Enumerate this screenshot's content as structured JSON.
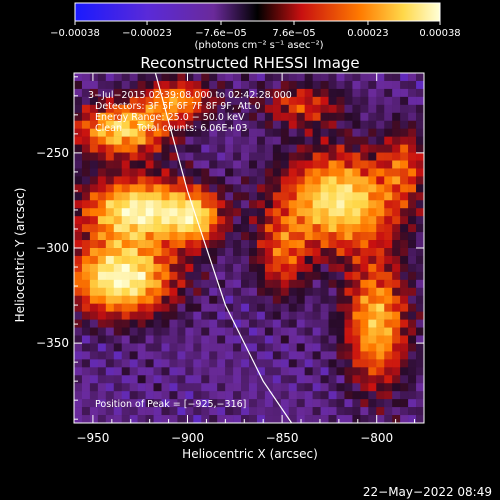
{
  "chart_data": {
    "type": "heatmap",
    "title": "Reconstructed RHESSI Image",
    "xlabel": "Heliocentric X (arcsec)",
    "ylabel": "Heliocentric Y (arcsec)",
    "xlim": [
      -960,
      -775
    ],
    "ylim": [
      -392,
      -208
    ],
    "x_ticks": [
      -950,
      -900,
      -850,
      -800
    ],
    "x_tick_labels": [
      "−950",
      "−900",
      "−850",
      "−800"
    ],
    "y_ticks": [
      -250,
      -300,
      -350
    ],
    "y_tick_labels": [
      "−250",
      "−300",
      "−350"
    ],
    "colorbar": {
      "range": [
        -0.00038,
        0.00038
      ],
      "ticks": [
        -0.00038,
        -0.00023,
        -7.6e-05,
        7.6e-05,
        0.00023,
        0.00038
      ],
      "tick_labels": [
        "−0.00038",
        "−0.00023",
        "−7.6e−05",
        "7.6e−05",
        "0.00023",
        "0.00038"
      ],
      "unit_label": "(photons cm⁻² s⁻¹ asec⁻²)"
    },
    "annotations": [
      "3−Jul−2015 02:39:08.000 to 02:42:28.000",
      "Detectors: 3F 5F 6F 7F 8F 9F, Att 0",
      "Energy Range: 25.0 − 50.0 keV",
      "Clean     Total counts: 6.06E+03"
    ],
    "peak_label": "Position of Peak = [−925,−316]",
    "peak_position": [
      -925,
      -316
    ],
    "limb_curve": [
      [
        -917,
        -208
      ],
      [
        -900,
        -270
      ],
      [
        -880,
        -330
      ],
      [
        -860,
        -370
      ],
      [
        -845,
        -392
      ]
    ],
    "blobs": [
      {
        "x": -935,
        "y": -238,
        "sx": 18,
        "sy": 10,
        "amp": 0.82
      },
      {
        "x": -925,
        "y": -280,
        "sx": 22,
        "sy": 12,
        "amp": 0.95
      },
      {
        "x": -935,
        "y": -316,
        "sx": 20,
        "sy": 14,
        "amp": 1.0
      },
      {
        "x": -905,
        "y": -222,
        "sx": 14,
        "sy": 8,
        "amp": 0.6
      },
      {
        "x": -895,
        "y": -285,
        "sx": 10,
        "sy": 10,
        "amp": 0.55
      },
      {
        "x": -820,
        "y": -275,
        "sx": 22,
        "sy": 18,
        "amp": 0.9
      },
      {
        "x": -800,
        "y": -340,
        "sx": 12,
        "sy": 24,
        "amp": 0.75
      },
      {
        "x": -840,
        "y": -225,
        "sx": 16,
        "sy": 8,
        "amp": 0.45
      },
      {
        "x": -785,
        "y": -255,
        "sx": 8,
        "sy": 14,
        "amp": 0.4
      },
      {
        "x": -850,
        "y": -305,
        "sx": 10,
        "sy": 16,
        "amp": 0.45
      }
    ]
  },
  "footer_date": "22−May−2022 08:49"
}
